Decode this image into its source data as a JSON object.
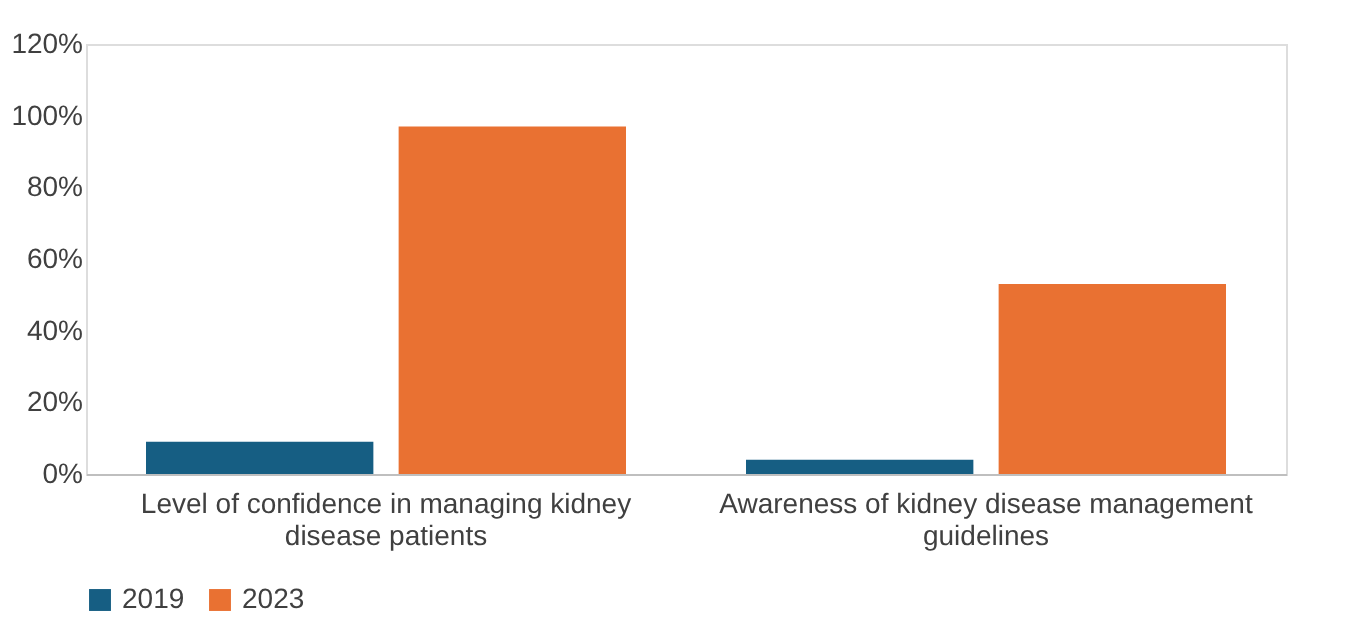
{
  "chart_data": {
    "type": "bar",
    "categories": [
      "Level of confidence in managing kidney disease patients",
      "Awareness of kidney disease management guidelines"
    ],
    "series": [
      {
        "name": "2019",
        "color": "#165e83",
        "values": [
          9,
          4
        ]
      },
      {
        "name": "2023",
        "color": "#e97132",
        "values": [
          97,
          53
        ]
      }
    ],
    "ylim": [
      0,
      120
    ],
    "yticks": [
      {
        "value": 0,
        "label": "0%"
      },
      {
        "value": 20,
        "label": "20%"
      },
      {
        "value": 40,
        "label": "40%"
      },
      {
        "value": 60,
        "label": "60%"
      },
      {
        "value": 80,
        "label": "80%"
      },
      {
        "value": 100,
        "label": "100%"
      },
      {
        "value": 120,
        "label": "120%"
      }
    ],
    "grid": false,
    "legend": "bottom"
  }
}
